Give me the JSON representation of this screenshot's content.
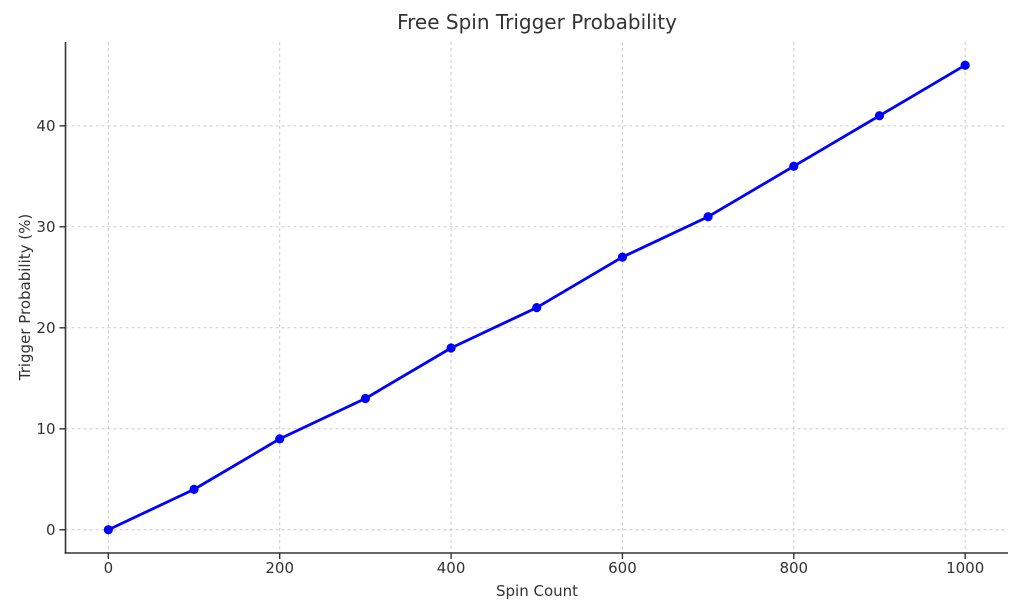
{
  "chart_data": {
    "type": "line",
    "title": "Free Spin Trigger Probability",
    "xlabel": "Spin Count",
    "ylabel": "Trigger Probability (%)",
    "x": [
      0,
      100,
      200,
      300,
      400,
      500,
      600,
      700,
      800,
      900,
      1000
    ],
    "y": [
      0,
      4,
      9,
      13,
      18,
      22,
      27,
      31,
      36,
      41,
      46
    ],
    "x_ticks": [
      0,
      200,
      400,
      600,
      800,
      1000
    ],
    "y_ticks": [
      0,
      10,
      20,
      30,
      40
    ],
    "xlim": [
      -50,
      1050
    ],
    "ylim": [
      -2.3,
      48.3
    ],
    "grid": true,
    "grid_style": "dashed",
    "legend": "none",
    "marker": "circle",
    "colors": {
      "line": "#0000ff",
      "marker": "#0000ff",
      "grid": "#cccccc",
      "spine": "#333333",
      "tick": "#333333",
      "text": "#333333",
      "background": "#ffffff"
    }
  }
}
